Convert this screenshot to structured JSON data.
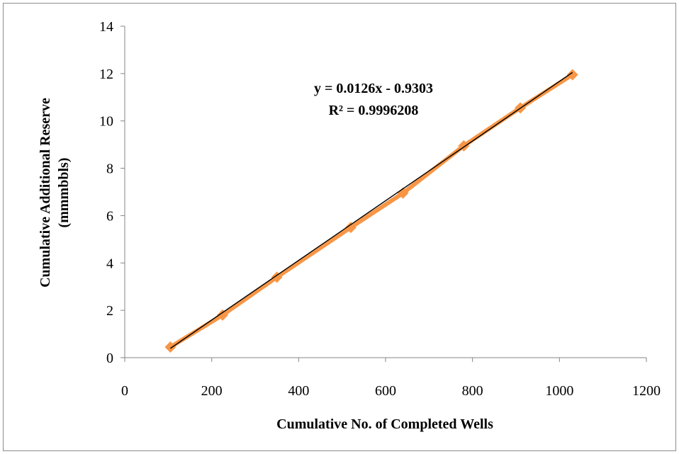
{
  "chart_data": {
    "type": "scatter",
    "xlabel": "Cumulative No. of Completed Wells",
    "ylabel_lines": [
      "Cumulative Additional Reserve",
      "(mmmbbls)"
    ],
    "xlim": [
      0,
      1200
    ],
    "ylim": [
      0,
      14
    ],
    "xticks": [
      0,
      200,
      400,
      600,
      800,
      1000,
      1200
    ],
    "yticks": [
      0,
      2,
      4,
      6,
      8,
      10,
      12,
      14
    ],
    "grid": false,
    "legend": "none",
    "series": [
      {
        "color": "#f79646",
        "marker": "diamond",
        "connected": true,
        "points": [
          {
            "x": 105,
            "y": 0.45
          },
          {
            "x": 225,
            "y": 1.8
          },
          {
            "x": 350,
            "y": 3.4
          },
          {
            "x": 520,
            "y": 5.5
          },
          {
            "x": 640,
            "y": 6.95
          },
          {
            "x": 780,
            "y": 8.95
          },
          {
            "x": 910,
            "y": 10.55
          },
          {
            "x": 1030,
            "y": 11.95
          }
        ]
      }
    ],
    "trendline": {
      "color": "#000000",
      "slope": 0.0126,
      "intercept": -0.9303,
      "x_range": [
        105,
        1030
      ],
      "equation": "y = 0.0126x - 0.9303",
      "r_squared": "R² = 0.9996208"
    }
  }
}
